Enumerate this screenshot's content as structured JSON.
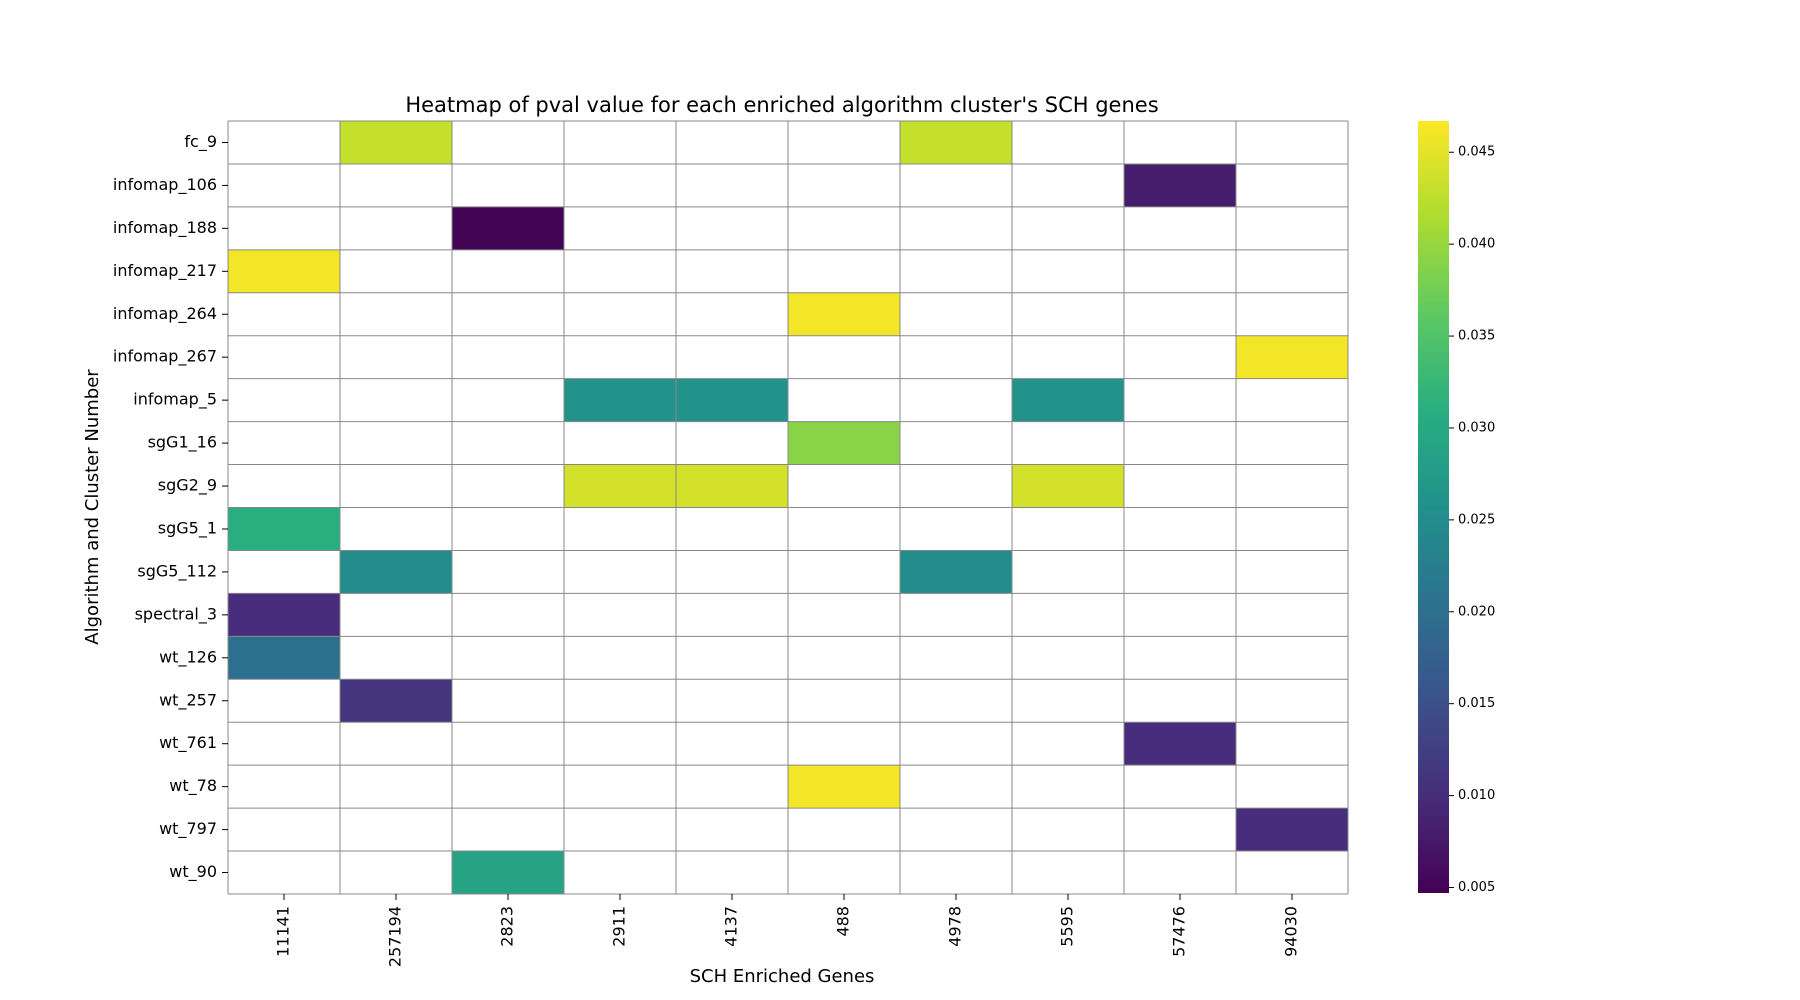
{
  "chart_data": {
    "type": "heatmap",
    "title": "Heatmap of pval value for each enriched algorithm cluster's SCH genes",
    "xlabel": "SCH Enriched Genes",
    "ylabel": "Algorithm and Cluster Number",
    "x_categories": [
      "11141",
      "257194",
      "2823",
      "2911",
      "4137",
      "488",
      "4978",
      "5595",
      "57476",
      "94030"
    ],
    "y_categories": [
      "fc_9",
      "infomap_106",
      "infomap_188",
      "infomap_217",
      "infomap_264",
      "infomap_267",
      "infomap_5",
      "sgG1_16",
      "sgG2_9",
      "sgG5_1",
      "sgG5_112",
      "spectral_3",
      "wt_126",
      "wt_257",
      "wt_761",
      "wt_78",
      "wt_797",
      "wt_90"
    ],
    "cells": [
      {
        "row": "fc_9",
        "col": "257194",
        "value": 0.043
      },
      {
        "row": "fc_9",
        "col": "4978",
        "value": 0.043
      },
      {
        "row": "infomap_106",
        "col": "57476",
        "value": 0.008
      },
      {
        "row": "infomap_188",
        "col": "2823",
        "value": 0.005
      },
      {
        "row": "infomap_217",
        "col": "11141",
        "value": 0.046
      },
      {
        "row": "infomap_264",
        "col": "488",
        "value": 0.046
      },
      {
        "row": "infomap_267",
        "col": "94030",
        "value": 0.046
      },
      {
        "row": "infomap_5",
        "col": "2911",
        "value": 0.026
      },
      {
        "row": "infomap_5",
        "col": "4137",
        "value": 0.026
      },
      {
        "row": "infomap_5",
        "col": "5595",
        "value": 0.026
      },
      {
        "row": "sgG1_16",
        "col": "488",
        "value": 0.039
      },
      {
        "row": "sgG2_9",
        "col": "2911",
        "value": 0.044
      },
      {
        "row": "sgG2_9",
        "col": "4137",
        "value": 0.044
      },
      {
        "row": "sgG2_9",
        "col": "5595",
        "value": 0.044
      },
      {
        "row": "sgG5_1",
        "col": "11141",
        "value": 0.031
      },
      {
        "row": "sgG5_112",
        "col": "257194",
        "value": 0.025
      },
      {
        "row": "sgG5_112",
        "col": "4978",
        "value": 0.025
      },
      {
        "row": "spectral_3",
        "col": "11141",
        "value": 0.01
      },
      {
        "row": "wt_126",
        "col": "11141",
        "value": 0.02
      },
      {
        "row": "wt_257",
        "col": "257194",
        "value": 0.011
      },
      {
        "row": "wt_761",
        "col": "57476",
        "value": 0.01
      },
      {
        "row": "wt_78",
        "col": "488",
        "value": 0.046
      },
      {
        "row": "wt_797",
        "col": "94030",
        "value": 0.01
      },
      {
        "row": "wt_90",
        "col": "2823",
        "value": 0.029
      }
    ],
    "colorbar": {
      "colormap": "viridis",
      "range": [
        0.0047,
        0.0467
      ],
      "ticks": [
        "0.005",
        "0.010",
        "0.015",
        "0.020",
        "0.025",
        "0.030",
        "0.035",
        "0.040",
        "0.045"
      ]
    },
    "grid": true,
    "grid_color": "#888888"
  }
}
